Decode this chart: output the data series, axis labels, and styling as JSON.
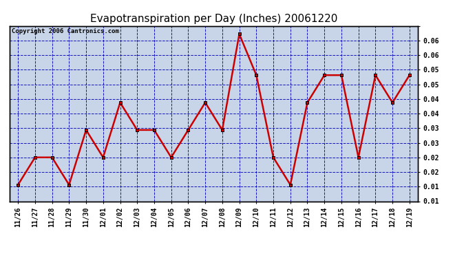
{
  "title": "Evapotranspiration per Day (Inches) 20061220",
  "copyright": "Copyright 2006 Cantronics.com",
  "x_labels": [
    "11/26",
    "11/27",
    "11/28",
    "11/29",
    "11/30",
    "12/01",
    "12/02",
    "12/03",
    "12/04",
    "12/05",
    "12/06",
    "12/07",
    "12/08",
    "12/09",
    "12/10",
    "12/11",
    "12/12",
    "12/13",
    "12/14",
    "12/15",
    "12/16",
    "12/17",
    "12/18",
    "12/19"
  ],
  "y_values": [
    0.01,
    0.02,
    0.02,
    0.01,
    0.03,
    0.02,
    0.04,
    0.03,
    0.03,
    0.02,
    0.03,
    0.04,
    0.03,
    0.065,
    0.05,
    0.02,
    0.01,
    0.04,
    0.05,
    0.05,
    0.02,
    0.05,
    0.04,
    0.05
  ],
  "line_color": "#cc0000",
  "background_color": "#ffffff",
  "plot_bg_color": "#c8d4e8",
  "grid_color": "#0000bb",
  "title_fontsize": 11,
  "ylim_min": 0.004,
  "ylim_max": 0.068,
  "left_ytick_vals": [],
  "right_ytick_vals": [
    0.00923,
    0.01385,
    0.01846,
    0.02308,
    0.02769,
    0.03231,
    0.03692,
    0.04154,
    0.04615,
    0.05077,
    0.05538,
    0.06,
    0.06462
  ],
  "right_ytick_labels": [
    "0.01",
    "0.01",
    "0.02",
    "0.02",
    "0.03",
    "0.03",
    "0.04",
    "0.04",
    "0.05",
    "0.05",
    "0.06",
    "0.06",
    ""
  ]
}
